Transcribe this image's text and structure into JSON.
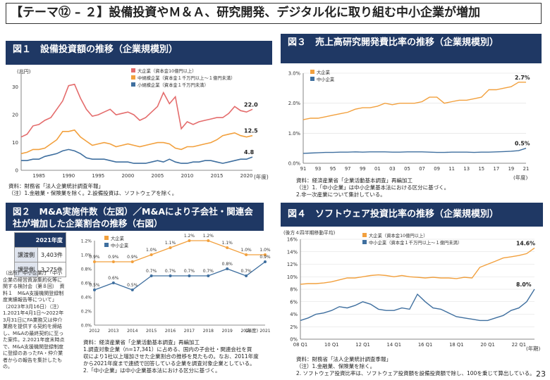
{
  "page_title": "【テーマ⑫ – ２】設備投資やＭ＆Ａ、研究開発、デジタル化に取り組む中小企業が増加",
  "page_number": "23",
  "headers": {
    "fig1": "図１　設備投資額の推移（企業規模別）",
    "fig2": "図２　M&A実施件数（左図）／M&Aにより子会社・関連会社が増加した企業割合の推移（右図）",
    "fig3": "図３　売上高研究開発費比率の推移（企業規模別）",
    "fig4": "図４　ソフトウェア投資比率の推移（企業規模別）"
  },
  "notes": {
    "fig1": [
      "資料：財務省「法人企業統計調査年報」",
      "（注）1.金融業・保険業を除く。2.設備投資は、ソフトウェアを除く。"
    ],
    "fig2": [
      "資料：経済産業省「企業活動基本調査」再編加工",
      "1.調査対象企業（n=17,341）に占める、国内の子会社・関連会社を買",
      "収により1社以上増加させた企業割合の推移を見たもの。なお、2011年度",
      "から2021年度まで連続で回答している企業を調査対象企業としている。",
      "2.「中小企業」は中小企業基本法における区分に基づく。"
    ],
    "fig3": [
      "資料：経済産業省「企業活動基本調査」再編加工",
      "（注）1.「中小企業」は中小企業基本法における区分に基づく。",
      "2.非一次産業について集計している。"
    ],
    "fig4": [
      "資料：財務省「法人企業統計調査季報」",
      "（注）1.金融業、保険業を除く。",
      "2. ソフトウェア投資比率は、ソフトウェア投資額を設備投資額で除し、100を乗じて算出している。"
    ],
    "fig2_left": "（出所）中小企業庁「中小企業の経営資源集約化等に関する検討会（第８回）　資料１　M&A支援機関登録制度実績報告等について」（2023年3月16日）（注）1.2021年4月1日～2022年3月31日にFA業務又は仲介業務を提供する契約を締結し、M&Aの最終契約に至った案件。2.2021年度末時点で、M&A支援機関登録制度に登録のあったFA・仲介業者からの報告を集計したもの。"
  },
  "ma_table": {
    "header": "2021年度",
    "rows": [
      {
        "k": "譲渡側",
        "v": "3,403件"
      },
      {
        "k": "譲受側",
        "v": "3,275件"
      }
    ]
  },
  "chart_data": [
    {
      "type": "line",
      "title": "図１　設備投資額の推移（企業規模別）",
      "ylabel": "(兆円)",
      "xlabel": "(年度)",
      "ylim": [
        0,
        35
      ],
      "yticks": [
        "0",
        "10",
        "20",
        "30"
      ],
      "xticks": [
        "1985",
        "1990",
        "1995",
        "2000",
        "2005",
        "2010",
        "2015",
        "2020"
      ],
      "x": [
        1982,
        1983,
        1984,
        1985,
        1986,
        1987,
        1988,
        1989,
        1990,
        1991,
        1992,
        1993,
        1994,
        1995,
        1996,
        1997,
        1998,
        1999,
        2000,
        2001,
        2002,
        2003,
        2004,
        2005,
        2006,
        2007,
        2008,
        2009,
        2010,
        2011,
        2012,
        2013,
        2014,
        2015,
        2016,
        2017,
        2018,
        2019,
        2020,
        2021
      ],
      "series": [
        {
          "name": "大企業（資本金10億円以上）",
          "color": "#e46c6c",
          "end_label": "22.0",
          "values": [
            12,
            13,
            16,
            16.5,
            18,
            19,
            22,
            25,
            30.5,
            31,
            26,
            22,
            19.5,
            20,
            21,
            22,
            20,
            20.5,
            21,
            20,
            18,
            19,
            21,
            23,
            28,
            24,
            26.5,
            15,
            17.5,
            16.5,
            17.5,
            18,
            18.5,
            19,
            19,
            20.5,
            23,
            21.5,
            21,
            22
          ]
        },
        {
          "name": "中規模企業（資本金１千万円以上～１億円未満）",
          "color": "#f2a03d",
          "end_label": "12.5",
          "values": [
            6,
            6.5,
            7.5,
            7.5,
            8,
            9.5,
            11,
            14,
            14,
            14.5,
            12,
            10.5,
            9,
            9.5,
            10,
            9.5,
            8.5,
            9,
            9.5,
            9,
            8.5,
            9,
            9.5,
            10,
            10,
            9.5,
            8,
            7.5,
            8.5,
            8.5,
            9,
            9.5,
            10,
            11,
            12.5,
            13,
            13.5,
            12.5,
            12,
            12.5
          ]
        },
        {
          "name": "小規模企業（資本金１千万円未満）",
          "color": "#3f6f9f",
          "end_label": "4.8",
          "values": [
            3.5,
            3.5,
            4,
            4,
            5,
            5.5,
            6,
            7,
            7.5,
            7,
            6,
            4.5,
            4,
            4,
            4,
            3.5,
            3,
            3,
            3,
            2.5,
            2.5,
            2.5,
            3,
            3.5,
            3,
            4,
            3,
            2.5,
            2.5,
            3,
            3,
            3.5,
            3.5,
            3,
            2.5,
            3,
            3.5,
            4,
            4,
            4.8
          ]
        }
      ]
    },
    {
      "type": "line",
      "title": "図２　M&Aにより子会社・関連会社が増加した企業割合の推移（右図）",
      "xlabel": "(年度)",
      "ylim": [
        0,
        1.2
      ],
      "yticks": [
        "0.0%",
        "0.2%",
        "0.4%",
        "0.6%",
        "0.8%",
        "1.0%",
        "1.2%"
      ],
      "x": [
        "2012",
        "2013",
        "2014",
        "2015",
        "2016",
        "2017",
        "2018",
        "2019",
        "2020",
        "2021"
      ],
      "series": [
        {
          "name": "大企業",
          "color": "#f2a03d",
          "values": [
            0.9,
            0.9,
            0.9,
            1.0,
            1.1,
            1.2,
            1.2,
            1.1,
            1.0,
            1.0
          ],
          "labels": [
            "0.9%",
            "0.9%",
            "0.9%",
            "1.0%",
            "1.1%",
            "1.2%",
            "1.2%",
            "1.1%",
            "1.0%",
            "1.0%"
          ]
        },
        {
          "name": "中小企業",
          "color": "#3f6f9f",
          "values": [
            0.5,
            0.6,
            0.5,
            0.7,
            0.7,
            0.7,
            0.7,
            0.8,
            0.7,
            0.9
          ],
          "labels": [
            "0.5%",
            "0.6%",
            "0.5%",
            "0.7%",
            "0.7%",
            "0.7%",
            "0.7%",
            "0.8%",
            "0.7%",
            "0.9%"
          ]
        }
      ]
    },
    {
      "type": "line",
      "title": "図３　売上高研究開発費比率の推移（企業規模別）",
      "xlabel": "(年度)",
      "ylim": [
        0,
        3.0
      ],
      "yticks": [
        "0.0%",
        "1.0%",
        "2.0%",
        "3.0%"
      ],
      "xticks": [
        "91",
        "93",
        "95",
        "97",
        "99",
        "01",
        "03",
        "05",
        "07",
        "09",
        "11",
        "13",
        "15",
        "17",
        "19",
        "21"
      ],
      "x": [
        1991,
        1992,
        1993,
        1994,
        1995,
        1996,
        1997,
        1998,
        1999,
        2000,
        2001,
        2002,
        2003,
        2004,
        2005,
        2006,
        2007,
        2008,
        2009,
        2010,
        2011,
        2012,
        2013,
        2014,
        2015,
        2016,
        2017,
        2018,
        2019,
        2020,
        2021
      ],
      "series": [
        {
          "name": "大企業",
          "color": "#f2a03d",
          "end_label": "2.7%",
          "values": [
            1.45,
            1.5,
            1.5,
            1.55,
            1.6,
            1.65,
            1.7,
            1.8,
            1.85,
            1.85,
            1.9,
            2.0,
            1.95,
            2.0,
            2.0,
            2.0,
            2.05,
            2.2,
            2.2,
            2.0,
            2.05,
            2.1,
            2.1,
            2.15,
            2.2,
            2.45,
            2.45,
            2.5,
            2.55,
            2.7,
            2.7
          ]
        },
        {
          "name": "中小企業",
          "color": "#3f6f9f",
          "end_label": "0.5%",
          "values": [
            0.33,
            0.34,
            0.35,
            0.36,
            0.36,
            0.37,
            0.37,
            0.38,
            0.37,
            0.38,
            0.38,
            0.38,
            0.37,
            0.37,
            0.38,
            0.38,
            0.38,
            0.37,
            0.36,
            0.36,
            0.37,
            0.37,
            0.37,
            0.36,
            0.37,
            0.37,
            0.38,
            0.39,
            0.4,
            0.42,
            0.5
          ]
        }
      ]
    },
    {
      "type": "line",
      "title": "図４　ソフトウェア投資比率の推移（企業規模別）",
      "ylabel": "(後方４四半期移動平均)",
      "xlabel": "(年期)",
      "ylim": [
        0,
        16
      ],
      "yticks": [
        "0%",
        "2%",
        "4%",
        "6%",
        "8%",
        "10%",
        "12%",
        "14%",
        "16%"
      ],
      "xticks": [
        "08 Q1",
        "10 Q1",
        "12 Q1",
        "14 Q1",
        "16 Q1",
        "18 Q1",
        "20 Q1",
        "22 Q1"
      ],
      "x": [
        "08Q1",
        "08Q3",
        "09Q1",
        "09Q3",
        "10Q1",
        "10Q3",
        "11Q1",
        "11Q3",
        "12Q1",
        "12Q3",
        "13Q1",
        "13Q3",
        "14Q1",
        "14Q3",
        "15Q1",
        "15Q3",
        "16Q1",
        "16Q3",
        "17Q1",
        "17Q3",
        "18Q1",
        "18Q3",
        "19Q1",
        "19Q3",
        "20Q1",
        "20Q3",
        "21Q1",
        "21Q3",
        "22Q1",
        "22Q3",
        "23Q1"
      ],
      "series": [
        {
          "name": "大企業（資本金10億円以上）",
          "color": "#f2a03d",
          "end_label": "14.6%",
          "values": [
            8.8,
            8.9,
            8.9,
            9.0,
            9.2,
            9.5,
            9.8,
            9.8,
            10.0,
            10.2,
            10.3,
            10.2,
            10.0,
            10.2,
            10.0,
            9.9,
            9.8,
            9.9,
            9.8,
            9.8,
            9.7,
            9.9,
            9.8,
            11.5,
            12.0,
            12.5,
            13.0,
            13.2,
            13.4,
            13.7,
            14.6
          ]
        },
        {
          "name": "中小企業（資本金１千万円以上～１億円未満）",
          "color": "#3f6f9f",
          "end_label": "8.0%",
          "values": [
            3.0,
            3.4,
            4.0,
            4.2,
            4.6,
            5.2,
            5.0,
            5.4,
            6.0,
            5.6,
            4.8,
            4.6,
            4.6,
            5.0,
            4.8,
            7.2,
            6.0,
            5.0,
            4.8,
            4.2,
            3.6,
            3.4,
            3.2,
            3.0,
            3.0,
            3.4,
            3.8,
            4.6,
            5.0,
            6.0,
            8.0
          ]
        }
      ]
    }
  ]
}
